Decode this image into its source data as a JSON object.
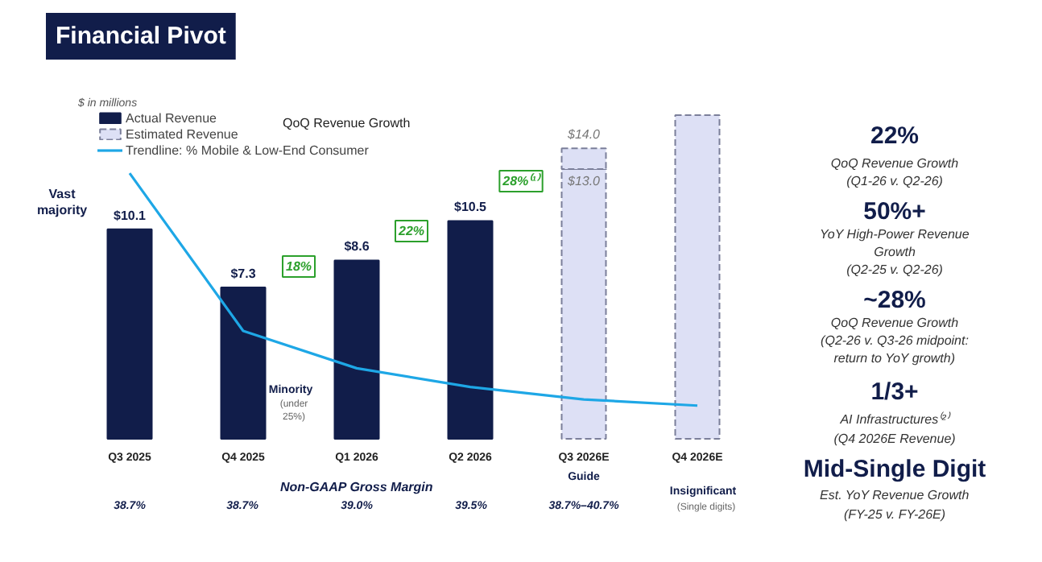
{
  "chart_data": [
    {
      "type": "bar",
      "title": "Financial Pivot",
      "subtitle": "$ in millions",
      "categories": [
        "Q3 2025",
        "Q4 2025",
        "Q1 2026",
        "Q2 2026",
        "Q3 2026E",
        "Q4 2026E"
      ],
      "tick_labels": "x",
      "grid": false,
      "legend": "top left",
      "stacked": true,
      "series": [
        {
          "name": "Actual Revenue",
          "color": "#111d4a",
          "values": [
            10.1,
            7.3,
            8.6,
            10.5,
            null,
            null
          ],
          "value_labels": [
            "$10.1",
            "$7.3",
            "$8.6",
            "$10.5",
            null,
            null
          ]
        },
        {
          "name": "Estimated Revenue",
          "color": "#dde0f5",
          "line_style": "dashed",
          "values": [
            null,
            null,
            null,
            null,
            13.0,
            15.6
          ],
          "value_labels": [
            null,
            null,
            null,
            null,
            "$13.0",
            null
          ]
        },
        {
          "color": "#dde0f5",
          "line_style": "dashed",
          "values": [
            null,
            null,
            null,
            null,
            1.0,
            null
          ]
        },
        {
          "name": "Trendline: % Mobile & Low-End Consumer",
          "type": "line",
          "color": "#1ea7e6",
          "values": [
            12.8,
            5.2,
            3.4,
            2.5,
            1.9,
            1.6
          ]
        }
      ],
      "totals": [
        null,
        null,
        null,
        null,
        "$14.0",
        null
      ],
      "annotations": [
        "QoQ Revenue Growth",
        "18%",
        "22%",
        "28%⁽¹⁾",
        "Vast majority",
        "Minority",
        "(under",
        "25%)",
        "Insignificant",
        "(Single digits)",
        "Guide",
        "Non-GAAP Gross Margin",
        "38.7%",
        "38.7%",
        "39.0%",
        "39.5%",
        "38.7%–40.7%"
      ]
    },
    {
      "type": "other",
      "annotations": [
        "22%",
        "QoQ Revenue Growth",
        "(Q1-26 v. Q2-26)",
        "50%+",
        "YoY High-Power Revenue",
        "Growth",
        "(Q2-25 v. Q2-26)",
        "~28%",
        "QoQ Revenue Growth",
        "(Q2-26 v. Q3-26 midpoint:",
        "return to YoY growth)",
        "1/3+",
        "AI Infrastructures⁽²⁾",
        "(Q4 2026E Revenue)",
        "Mid-Single Digit",
        "Est. YoY Revenue Growth",
        "(FY-25 v. FY-26E)"
      ]
    }
  ]
}
